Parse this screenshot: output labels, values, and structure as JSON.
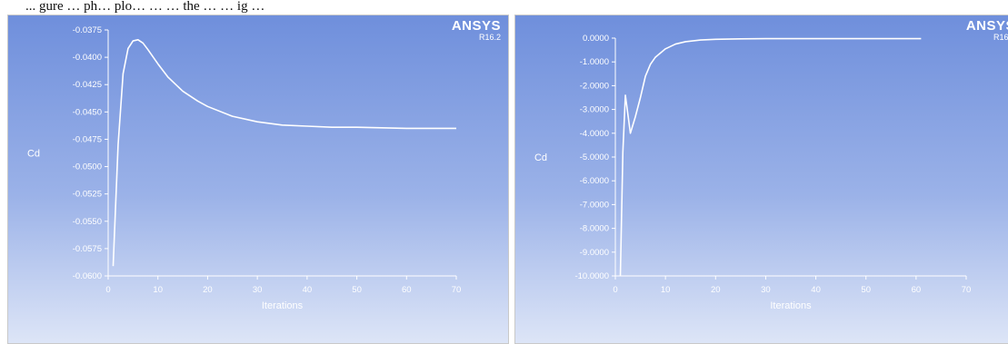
{
  "caption": "... gure … ph… plo… … … the … … ig …",
  "logo": {
    "brand": "ANSYS",
    "version": "R16.2"
  },
  "chart_data": [
    {
      "type": "line",
      "xlabel": "Iterations",
      "ylabel": "Cd",
      "xlim": [
        0,
        70
      ],
      "ylim": [
        -0.06,
        -0.0375
      ],
      "x_ticks": [
        0,
        10,
        20,
        30,
        40,
        50,
        60,
        70
      ],
      "y_ticks": [
        -0.0375,
        -0.04,
        -0.0425,
        -0.045,
        -0.0475,
        -0.05,
        -0.0525,
        -0.055,
        -0.0575,
        -0.06
      ],
      "y_tick_labels": [
        "-0.0375",
        "-0.0400",
        "-0.0425",
        "-0.0450",
        "-0.0475",
        "-0.0500",
        "-0.0525",
        "-0.0550",
        "-0.0575",
        "-0.0600"
      ],
      "x_tick_labels": [
        "0",
        "10",
        "20",
        "30",
        "40",
        "50",
        "60",
        "70"
      ],
      "series": [
        {
          "x": [
            1,
            2,
            3,
            4,
            5,
            6,
            7,
            8,
            10,
            12,
            15,
            18,
            20,
            25,
            30,
            35,
            40,
            45,
            50,
            60,
            70
          ],
          "y": [
            -0.0591,
            -0.048,
            -0.0415,
            -0.0392,
            -0.0385,
            -0.0384,
            -0.0387,
            -0.0393,
            -0.0406,
            -0.0418,
            -0.0431,
            -0.044,
            -0.0445,
            -0.0454,
            -0.0459,
            -0.0462,
            -0.0463,
            -0.0464,
            -0.0464,
            -0.0465,
            -0.0465
          ]
        }
      ]
    },
    {
      "type": "line",
      "xlabel": "Iterations",
      "ylabel": "Cd",
      "xlim": [
        0,
        70
      ],
      "ylim": [
        -10,
        0
      ],
      "x_ticks": [
        0,
        10,
        20,
        30,
        40,
        50,
        60,
        70
      ],
      "y_ticks": [
        0,
        -1,
        -2,
        -3,
        -4,
        -5,
        -6,
        -7,
        -8,
        -9,
        -10
      ],
      "y_tick_labels": [
        "0.0000",
        "-1.0000",
        "-2.0000",
        "-3.0000",
        "-4.0000",
        "-5.0000",
        "-6.0000",
        "-7.0000",
        "-8.0000",
        "-9.0000",
        "-10.0000"
      ],
      "x_tick_labels": [
        "0",
        "10",
        "20",
        "30",
        "40",
        "50",
        "60",
        "70"
      ],
      "series": [
        {
          "x": [
            1,
            1.5,
            2,
            3,
            4,
            5,
            6,
            7,
            8,
            10,
            12,
            14,
            17,
            20,
            25,
            30,
            40,
            50,
            61
          ],
          "y": [
            -10,
            -4.8,
            -2.4,
            -4.0,
            -3.3,
            -2.5,
            -1.6,
            -1.1,
            -0.8,
            -0.45,
            -0.25,
            -0.15,
            -0.08,
            -0.05,
            -0.03,
            -0.02,
            -0.02,
            -0.02,
            -0.02
          ]
        }
      ]
    }
  ]
}
